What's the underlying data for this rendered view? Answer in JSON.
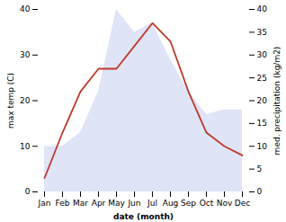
{
  "chart_data": {
    "type": "line",
    "categories": [
      "Jan",
      "Feb",
      "Mar",
      "Apr",
      "May",
      "Jun",
      "Jul",
      "Aug",
      "Sep",
      "Oct",
      "Nov",
      "Dec"
    ],
    "series": [
      {
        "type": "area",
        "axis": "y2",
        "color": "#c5cdf0",
        "values": [
          10,
          10,
          13,
          22,
          40,
          35,
          37,
          29,
          22,
          17,
          18,
          18
        ]
      },
      {
        "type": "line",
        "color": "#c0392b",
        "values": [
          3,
          13,
          22,
          27,
          27,
          32,
          37,
          33,
          22,
          13,
          10,
          8
        ]
      }
    ],
    "xlabel": "date (month)",
    "ylabel": "max temp (C)",
    "y2label": "med. precipitation (kg/m2)",
    "ylim": [
      0,
      40
    ],
    "yticks": [
      0,
      10,
      20,
      30,
      40
    ],
    "y2lim": [
      0,
      40
    ],
    "y2ticks": [
      0,
      5,
      10,
      15,
      20,
      25,
      30,
      35,
      40
    ],
    "grid": false
  }
}
